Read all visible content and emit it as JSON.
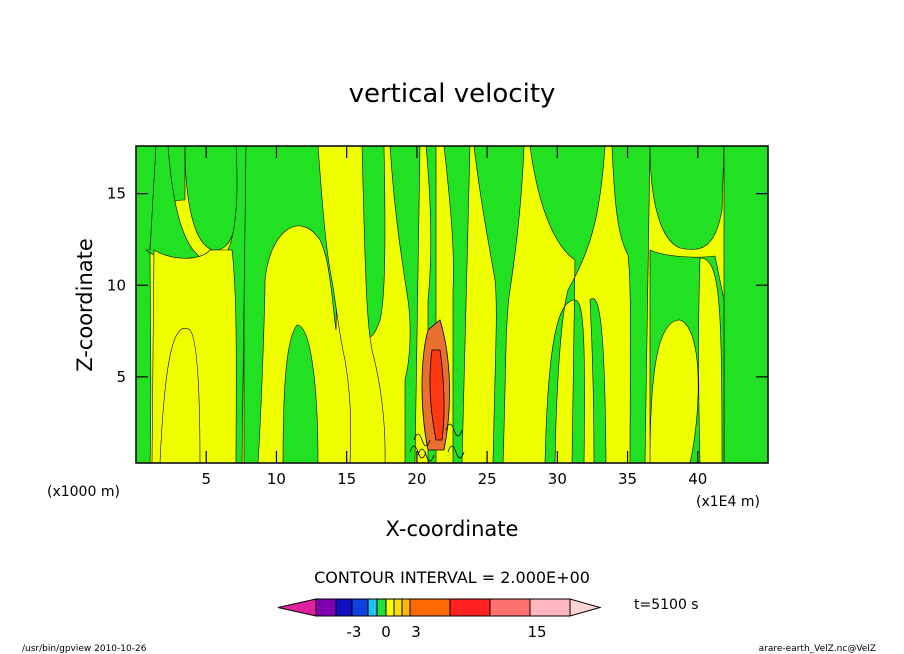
{
  "chart_data": {
    "type": "heatmap",
    "title": "vertical velocity",
    "xlabel": "X-coordinate",
    "ylabel": "Z-coordinate",
    "x_axis": {
      "ticks": [
        5,
        10,
        15,
        20,
        25,
        30,
        35,
        40
      ],
      "range": [
        0,
        45
      ],
      "unit_left": "(x1000 m)",
      "unit_right": "(x1E4 m)"
    },
    "y_axis": {
      "ticks": [
        5,
        10,
        15
      ],
      "range": [
        0.3,
        17.6
      ]
    },
    "contour_interval": "CONTOUR INTERVAL = 2.000E+00",
    "time_label": "t=5100 s",
    "colorbar": {
      "colors": [
        "#e0209e",
        "#8000b0",
        "#1010c0",
        "#1040e0",
        "#20c0f0",
        "#20e040",
        "#ffff00",
        "#ffe000",
        "#ffb800",
        "#ff6a00",
        "#ff2020",
        "#ff7070",
        "#ffb8c0",
        "#ffd4d4"
      ],
      "labels": [
        "-3",
        "0",
        "3",
        "15"
      ]
    },
    "field_palette": {
      "negative": "#22e022",
      "positive": "#f0ff00",
      "strong_positive": "#e87030",
      "peak": "#ff3a10"
    },
    "grid": false,
    "legend": "bottom"
  },
  "footer": {
    "left": "/usr/bin/gpview   2010-10-26",
    "right": "arare-earth_VelZ.nc@VelZ"
  }
}
